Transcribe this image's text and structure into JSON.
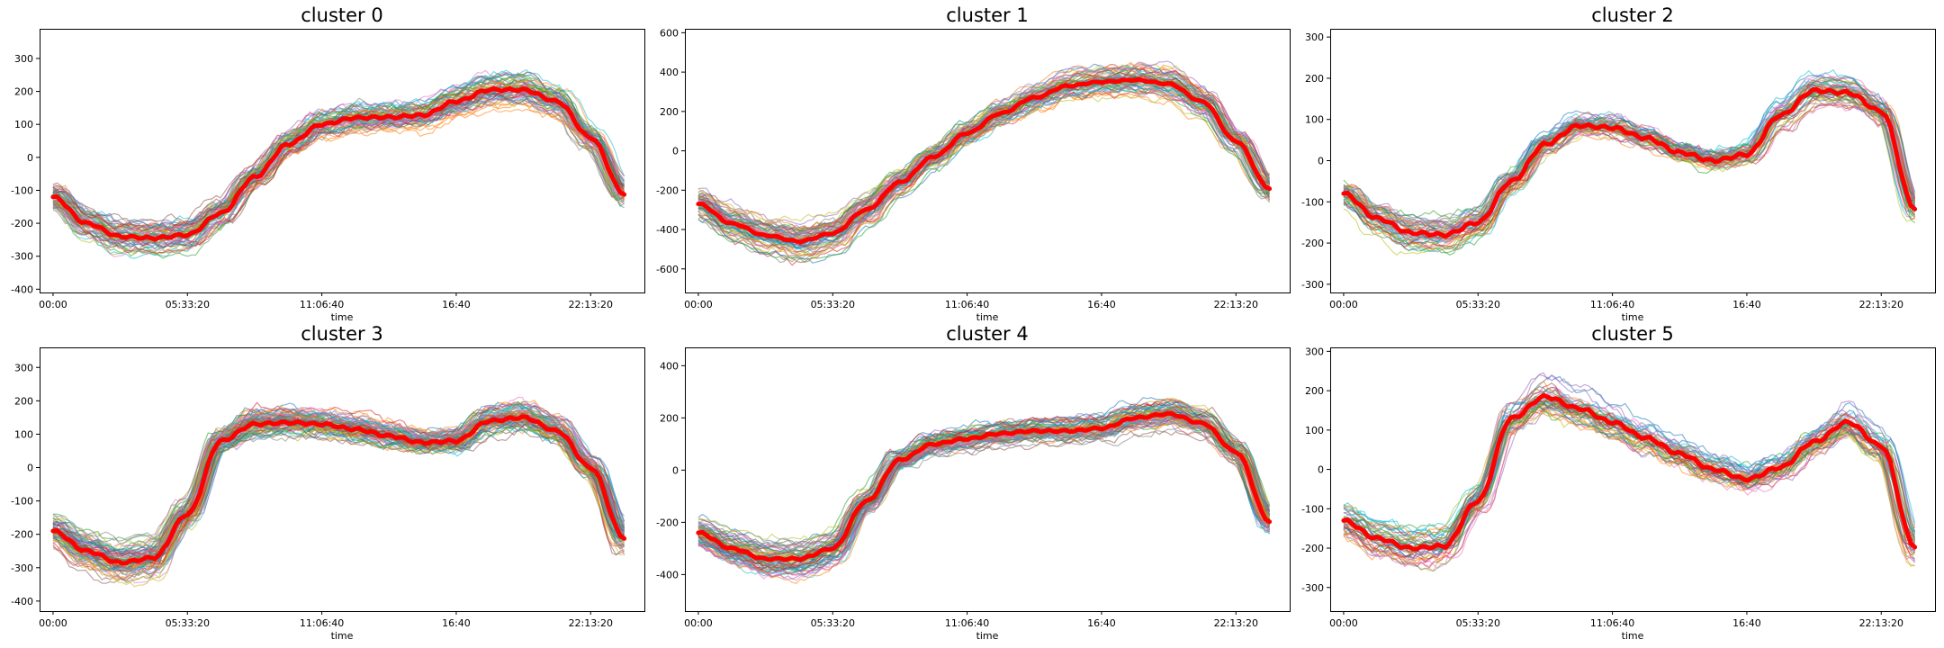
{
  "figure": {
    "panel_colors": [
      "#1f77b4",
      "#ff7f0e",
      "#2ca02c",
      "#d62728",
      "#9467bd",
      "#8c564b",
      "#e377c2",
      "#7f7f7f",
      "#bcbd22",
      "#17becf"
    ],
    "centroid_color": "#ff0000"
  },
  "chart_data": [
    {
      "type": "line",
      "title": "cluster 0",
      "xlabel": "time",
      "ylabel": "",
      "x_ticks": [
        "00:00",
        "05:33:20",
        "11:06:40",
        "16:40",
        "22:13:20"
      ],
      "x_tick_values": [
        0,
        20000,
        40000,
        60000,
        80000
      ],
      "xlim": [
        -2000,
        88000
      ],
      "ylim": [
        -410,
        390
      ],
      "y_ticks": [
        -400,
        -300,
        -200,
        -100,
        0,
        100,
        200,
        300
      ],
      "grid": false,
      "member_count": 60,
      "member_spread": 45,
      "centroid": {
        "name": "centroid",
        "x": [
          0,
          5000,
          10000,
          15000,
          20000,
          25000,
          30000,
          35000,
          40000,
          45000,
          50000,
          55000,
          60000,
          65000,
          70000,
          75000,
          80000,
          85000
        ],
        "y": [
          -120,
          -200,
          -240,
          -245,
          -235,
          -170,
          -60,
          40,
          100,
          120,
          122,
          128,
          170,
          205,
          205,
          170,
          60,
          -110
        ]
      }
    },
    {
      "type": "line",
      "title": "cluster 1",
      "xlabel": "time",
      "ylabel": "",
      "x_ticks": [
        "00:00",
        "05:33:20",
        "11:06:40",
        "16:40",
        "22:13:20"
      ],
      "x_tick_values": [
        0,
        20000,
        40000,
        60000,
        80000
      ],
      "xlim": [
        -2000,
        88000
      ],
      "ylim": [
        -720,
        620
      ],
      "y_ticks": [
        -600,
        -400,
        -200,
        0,
        200,
        400,
        600
      ],
      "grid": false,
      "member_count": 60,
      "member_spread": 70,
      "centroid": {
        "name": "centroid",
        "x": [
          0,
          5000,
          10000,
          15000,
          20000,
          25000,
          30000,
          35000,
          40000,
          45000,
          50000,
          55000,
          60000,
          65000,
          70000,
          75000,
          80000,
          85000
        ],
        "y": [
          -270,
          -370,
          -430,
          -460,
          -420,
          -300,
          -160,
          -30,
          90,
          190,
          270,
          330,
          350,
          360,
          340,
          250,
          50,
          -190
        ]
      }
    },
    {
      "type": "line",
      "title": "cluster 2",
      "xlabel": "time",
      "ylabel": "",
      "x_ticks": [
        "00:00",
        "05:33:20",
        "11:06:40",
        "16:40",
        "22:13:20"
      ],
      "x_tick_values": [
        0,
        20000,
        40000,
        60000,
        80000
      ],
      "xlim": [
        -2000,
        88000
      ],
      "ylim": [
        -320,
        320
      ],
      "y_ticks": [
        -300,
        -200,
        -100,
        0,
        100,
        200,
        300
      ],
      "grid": false,
      "member_count": 50,
      "member_spread": 35,
      "centroid": {
        "name": "centroid",
        "x": [
          0,
          5000,
          10000,
          15000,
          20000,
          25000,
          30000,
          35000,
          40000,
          45000,
          50000,
          55000,
          60000,
          65000,
          70000,
          75000,
          80000,
          85000
        ],
        "y": [
          -80,
          -140,
          -175,
          -180,
          -150,
          -50,
          40,
          85,
          80,
          55,
          20,
          0,
          15,
          110,
          170,
          165,
          120,
          -115
        ]
      }
    },
    {
      "type": "line",
      "title": "cluster 3",
      "xlabel": "time",
      "ylabel": "",
      "x_ticks": [
        "00:00",
        "05:33:20",
        "11:06:40",
        "16:40",
        "22:13:20"
      ],
      "x_tick_values": [
        0,
        20000,
        40000,
        60000,
        80000
      ],
      "xlim": [
        -2000,
        88000
      ],
      "ylim": [
        -430,
        360
      ],
      "y_ticks": [
        -400,
        -300,
        -200,
        -100,
        0,
        100,
        200,
        300
      ],
      "grid": false,
      "member_count": 80,
      "member_spread": 45,
      "centroid": {
        "name": "centroid",
        "x": [
          0,
          5000,
          10000,
          15000,
          20000,
          25000,
          30000,
          35000,
          40000,
          45000,
          50000,
          55000,
          60000,
          65000,
          70000,
          75000,
          80000,
          85000
        ],
        "y": [
          -190,
          -250,
          -285,
          -270,
          -140,
          80,
          130,
          135,
          130,
          115,
          95,
          75,
          80,
          140,
          150,
          110,
          0,
          -210
        ]
      }
    },
    {
      "type": "line",
      "title": "cluster 4",
      "xlabel": "time",
      "ylabel": "",
      "x_ticks": [
        "00:00",
        "05:33:20",
        "11:06:40",
        "16:40",
        "22:13:20"
      ],
      "x_tick_values": [
        0,
        20000,
        40000,
        60000,
        80000
      ],
      "xlim": [
        -2000,
        88000
      ],
      "ylim": [
        -540,
        470
      ],
      "y_ticks": [
        -400,
        -200,
        0,
        200,
        400
      ],
      "grid": false,
      "member_count": 70,
      "member_spread": 50,
      "centroid": {
        "name": "centroid",
        "x": [
          0,
          5000,
          10000,
          15000,
          20000,
          25000,
          30000,
          35000,
          40000,
          45000,
          50000,
          55000,
          60000,
          65000,
          70000,
          75000,
          80000,
          85000
        ],
        "y": [
          -240,
          -300,
          -340,
          -340,
          -300,
          -120,
          40,
          100,
          120,
          140,
          150,
          150,
          160,
          200,
          215,
          180,
          70,
          -195
        ]
      }
    },
    {
      "type": "line",
      "title": "cluster 5",
      "xlabel": "time",
      "ylabel": "",
      "x_ticks": [
        "00:00",
        "05:33:20",
        "11:06:40",
        "16:40",
        "22:13:20"
      ],
      "x_tick_values": [
        0,
        20000,
        40000,
        60000,
        80000
      ],
      "xlim": [
        -2000,
        88000
      ],
      "ylim": [
        -360,
        310
      ],
      "y_ticks": [
        -300,
        -200,
        -100,
        0,
        100,
        200,
        300
      ],
      "grid": false,
      "member_count": 45,
      "member_spread": 45,
      "centroid": {
        "name": "centroid",
        "x": [
          0,
          5000,
          10000,
          15000,
          20000,
          25000,
          30000,
          35000,
          40000,
          45000,
          50000,
          55000,
          60000,
          65000,
          70000,
          75000,
          80000,
          85000
        ],
        "y": [
          -130,
          -175,
          -200,
          -195,
          -80,
          130,
          185,
          155,
          120,
          80,
          40,
          0,
          -25,
          5,
          70,
          120,
          60,
          -195
        ]
      }
    }
  ]
}
